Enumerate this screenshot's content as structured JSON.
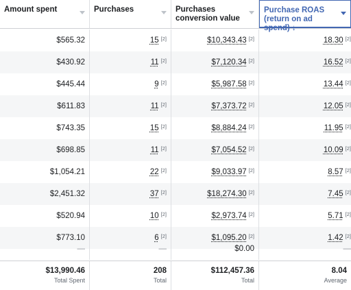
{
  "header": {
    "columns": [
      {
        "label": "Amount spent"
      },
      {
        "label": "Purchases"
      },
      {
        "label": "Purchases conversion value"
      },
      {
        "label": "Purchase ROAS (return on ad spend) ↓"
      }
    ]
  },
  "footnote_marker": "[2]",
  "rows": [
    {
      "amount": "$565.32",
      "purchases": "15",
      "value": "$10,343.43",
      "roas": "18.30"
    },
    {
      "amount": "$430.92",
      "purchases": "11",
      "value": "$7,120.34",
      "roas": "16.52"
    },
    {
      "amount": "$445.44",
      "purchases": "9",
      "value": "$5,987.58",
      "roas": "13.44"
    },
    {
      "amount": "$611.83",
      "purchases": "11",
      "value": "$7,373.72",
      "roas": "12.05"
    },
    {
      "amount": "$743.35",
      "purchases": "15",
      "value": "$8,884.24",
      "roas": "11.95"
    },
    {
      "amount": "$698.85",
      "purchases": "11",
      "value": "$7,054.52",
      "roas": "10.09"
    },
    {
      "amount": "$1,054.21",
      "purchases": "22",
      "value": "$9,033.97",
      "roas": "8.57"
    },
    {
      "amount": "$2,451.32",
      "purchases": "37",
      "value": "$18,274.30",
      "roas": "7.45"
    },
    {
      "amount": "$520.94",
      "purchases": "10",
      "value": "$2,973.74",
      "roas": "5.71"
    },
    {
      "amount": "$773.10",
      "purchases": "6",
      "value": "$1,095.20",
      "roas": "1.42"
    }
  ],
  "empty_row": {
    "amount": "—",
    "purchases": "—",
    "value": "$0.00",
    "roas": "—"
  },
  "totals": {
    "amount": {
      "value": "$13,990.46",
      "label": "Total Spent"
    },
    "purchases": {
      "value": "208",
      "label": "Total"
    },
    "value": {
      "value": "$112,457.36",
      "label": "Total"
    },
    "roas": {
      "value": "8.04",
      "label": "Average"
    }
  },
  "colors": {
    "accent": "#4267b2",
    "alt_row": "#f5f6f7",
    "border": "#dddfe2"
  }
}
